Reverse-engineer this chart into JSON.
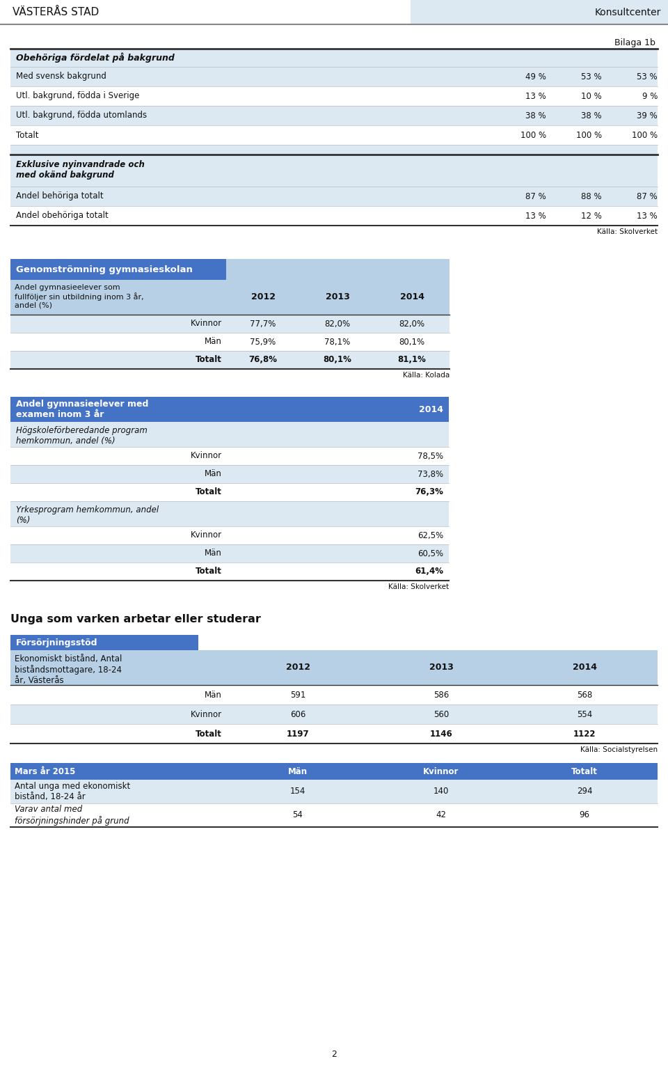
{
  "header_title": "VÄSTERÅS STAD",
  "header_right": "Konsultcenter",
  "bilaga": "Bilaga 1b",
  "page_num": "2",
  "table1_title": "Obehöriga fördelat på bakgrund",
  "table1_rows": [
    [
      "Med svensk bakgrund",
      "49 %",
      "53 %",
      "53 %"
    ],
    [
      "Utl. bakgrund, födda i Sverige",
      "13 %",
      "10 %",
      "9 %"
    ],
    [
      "Utl. bakgrund, födda utomlands",
      "38 %",
      "38 %",
      "39 %"
    ],
    [
      "Totalt",
      "100 %",
      "100 %",
      "100 %"
    ]
  ],
  "table1_subtitle": "Exklusive nyinvandrade och\nmed okänd bakgrund",
  "table1_rows2": [
    [
      "Andel behöriga totalt",
      "87 %",
      "88 %",
      "87 %"
    ],
    [
      "Andel obehöriga totalt",
      "13 %",
      "12 %",
      "13 %"
    ]
  ],
  "table1_source": "Källa: Skolverket",
  "table2_main_title": "Genomströmning gymnasieskolan",
  "table2_subtitle": "Andel gymnasieelever som\nfullföljer sin utbildning inom 3 år,\nandel (%)",
  "table2_headers": [
    "2012",
    "2013",
    "2014"
  ],
  "table2_rows": [
    [
      "Kvinnor",
      "77,7%",
      "82,0%",
      "82,0%"
    ],
    [
      "Män",
      "75,9%",
      "78,1%",
      "80,1%"
    ],
    [
      "Totalt",
      "76,8%",
      "80,1%",
      "81,1%"
    ]
  ],
  "table2_source": "Källa: Kolada",
  "table3_title": "Andel gymnasieelever med\nexamen inom 3 år",
  "table3_year": "2014",
  "table3_prog1": "Högskoleförberedande program\nhemkommun, andel (%)",
  "table3_rows1": [
    [
      "Kvinnor",
      "78,5%"
    ],
    [
      "Män",
      "73,8%"
    ],
    [
      "Totalt",
      "76,3%"
    ]
  ],
  "table3_prog2": "Yrkesprogram hemkommun, andel\n(%)",
  "table3_rows2": [
    [
      "Kvinnor",
      "62,5%"
    ],
    [
      "Män",
      "60,5%"
    ],
    [
      "Totalt",
      "61,4%"
    ]
  ],
  "table3_source": "Källa: Skolverket",
  "table4_big_title": "Unga som varken arbetar eller studerar",
  "table4_section_title": "Försörjningsstöd",
  "table4_subtitle": "Ekonomiskt bistånd, Antal\nbiståndsmottagare, 18-24\når, Västerås",
  "table4_headers": [
    "2012",
    "2013",
    "2014"
  ],
  "table4_rows": [
    [
      "Män",
      "591",
      "586",
      "568"
    ],
    [
      "Kvinnor",
      "606",
      "560",
      "554"
    ],
    [
      "Totalt",
      "1197",
      "1146",
      "1122"
    ]
  ],
  "table4_source": "Källa: Socialstyrelsen",
  "table5_headers": [
    "Män",
    "Kvinnor",
    "Totalt"
  ],
  "table5_title_left": "Mars år 2015",
  "table5_rows": [
    [
      "Antal unga med ekonomiskt\nbistånd, 18-24 år",
      "154",
      "140",
      "294"
    ],
    [
      "Varav antal med\nförsörjningshinder på grund",
      "54",
      "42",
      "96"
    ]
  ],
  "bg_light": "#dce9f2",
  "bg_medium": "#b8d0e5",
  "bg_header_blue": "#4472c4",
  "bg_header_blue2": "#5b87c8",
  "white": "#ffffff",
  "gray_border": "#888888",
  "light_border": "#bbbbbb",
  "text_dark": "#1a1a1a"
}
